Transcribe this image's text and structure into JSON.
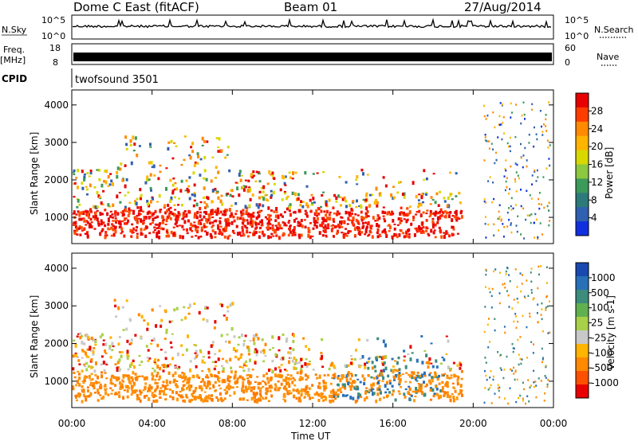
{
  "header": {
    "station": "Dome C East (fitACF)",
    "beam": "Beam 01",
    "date": "27/Aug/2014"
  },
  "strip": {
    "nsky_label": "N.Sky",
    "nsearch_label": "N.Search",
    "nsky_ticks": [
      "10^5",
      "10^0"
    ],
    "nsearch_ticks": [
      "10^5",
      "10^0"
    ],
    "freq_label_1": "Freq.",
    "freq_label_2": "[MHz]",
    "freq_ticks": [
      "18",
      "8"
    ],
    "nave_label": "Nave",
    "nave_ticks": [
      "60",
      "0"
    ],
    "cpid_label": "CPID",
    "cpid_value": "twofsound 3501"
  },
  "chart_data": [
    {
      "type": "heatmap",
      "panel": "power",
      "ylabel": "Slant Range [km]",
      "ylim": [
        300,
        4400
      ],
      "yticks": [
        1000,
        2000,
        3000,
        4000
      ],
      "xlim": [
        "00:00",
        "24:00"
      ],
      "xticks": [
        "00:00",
        "04:00",
        "08:00",
        "12:00",
        "16:00",
        "20:00",
        "00:00"
      ],
      "colorbar_label": "Power [dB]",
      "colorbar_ticks": [
        "28",
        "24",
        "20",
        "16",
        "12",
        "8",
        "4"
      ],
      "colorbar_colors": [
        "#e80000",
        "#ff3c00",
        "#ff8a00",
        "#ffb400",
        "#d8d800",
        "#8cc840",
        "#3c9a5a",
        "#2d7a7a",
        "#3060b0",
        "#1030e0"
      ]
    },
    {
      "type": "heatmap",
      "panel": "velocity",
      "ylabel": "Slant Range [km]",
      "ylim": [
        300,
        4400
      ],
      "yticks": [
        1000,
        2000,
        3000,
        4000
      ],
      "xlim": [
        "00:00",
        "24:00"
      ],
      "xticks": [
        "00:00",
        "04:00",
        "08:00",
        "12:00",
        "16:00",
        "20:00",
        "00:00"
      ],
      "xlabel": "Time UT",
      "colorbar_label": "Velocity [m s-1]",
      "colorbar_ticks": [
        "1000",
        "500",
        "100",
        "25",
        "-25",
        "-100",
        "-500",
        "-1000"
      ],
      "colorbar_colors": [
        "#1848b0",
        "#2870b8",
        "#3c8c7c",
        "#60b050",
        "#a8d048",
        "#c8c8c8",
        "#ffb400",
        "#ff8a00",
        "#ff5000",
        "#e80000"
      ]
    }
  ]
}
